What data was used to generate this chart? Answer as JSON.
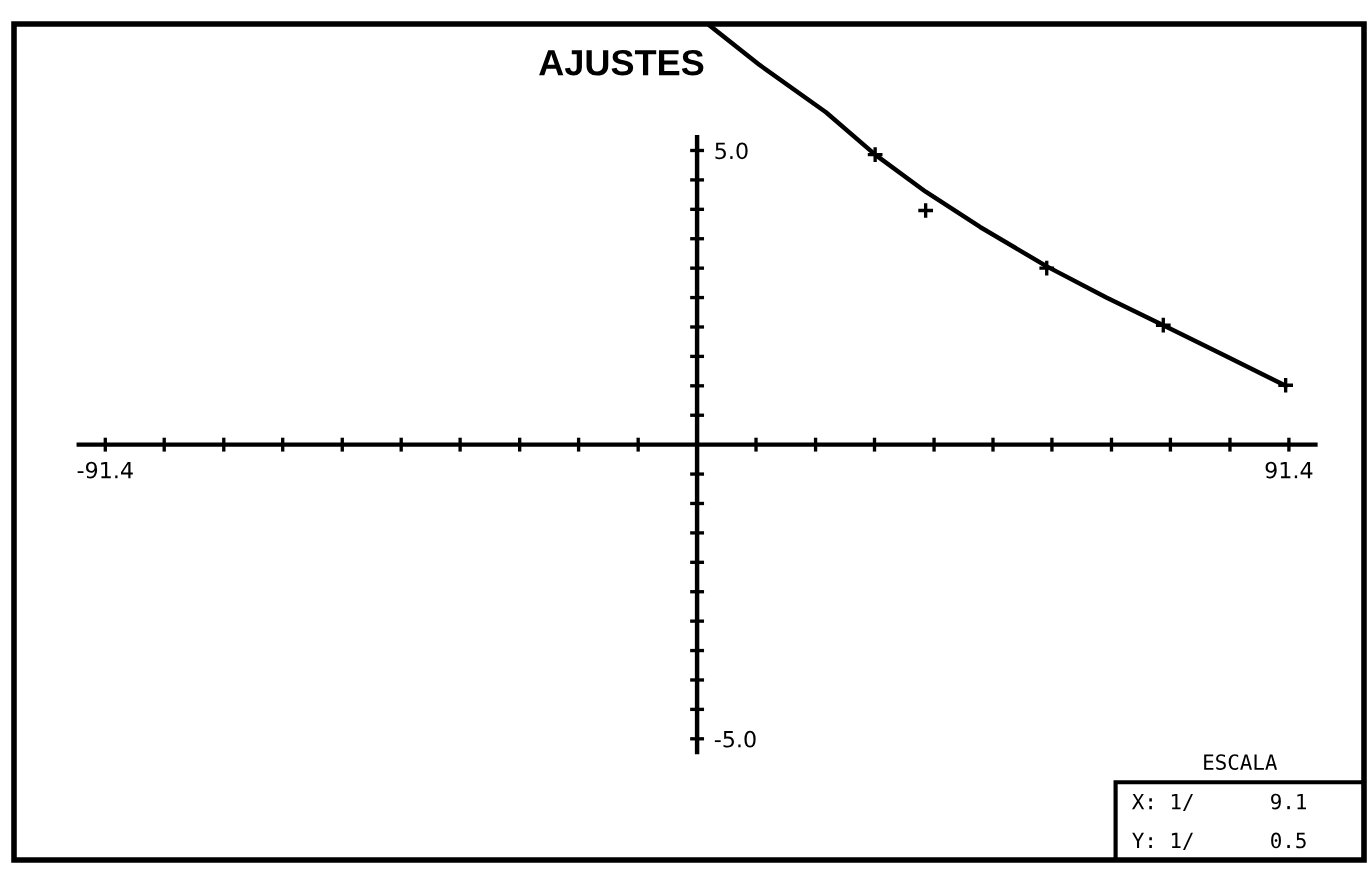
{
  "chart_data": {
    "type": "scatter",
    "title": "AJUSTES",
    "xlim": [
      -105.5,
      103.0
    ],
    "ylim": [
      -7.06,
      7.15
    ],
    "xticks": [
      {
        "value": -91.4,
        "label": "-91.4"
      },
      {
        "value": -82.3,
        "label": null
      },
      {
        "value": -73.1,
        "label": null
      },
      {
        "value": -64.0,
        "label": null
      },
      {
        "value": -54.8,
        "label": null
      },
      {
        "value": -45.7,
        "label": null
      },
      {
        "value": -36.6,
        "label": null
      },
      {
        "value": -27.4,
        "label": null
      },
      {
        "value": -18.3,
        "label": null
      },
      {
        "value": -9.1,
        "label": null
      },
      {
        "value": 9.1,
        "label": null
      },
      {
        "value": 18.3,
        "label": null
      },
      {
        "value": 27.4,
        "label": null
      },
      {
        "value": 36.6,
        "label": null
      },
      {
        "value": 45.7,
        "label": null
      },
      {
        "value": 54.8,
        "label": null
      },
      {
        "value": 64.0,
        "label": null
      },
      {
        "value": 73.1,
        "label": null
      },
      {
        "value": 82.3,
        "label": null
      },
      {
        "value": 91.4,
        "label": "91.4"
      }
    ],
    "yticks": [
      {
        "value": -5.0,
        "label": "-5.0"
      },
      {
        "value": -4.5,
        "label": null
      },
      {
        "value": -4.0,
        "label": null
      },
      {
        "value": -3.5,
        "label": null
      },
      {
        "value": -3.0,
        "label": null
      },
      {
        "value": -2.5,
        "label": null
      },
      {
        "value": -2.0,
        "label": null
      },
      {
        "value": -1.5,
        "label": null
      },
      {
        "value": -1.0,
        "label": null
      },
      {
        "value": -0.5,
        "label": null
      },
      {
        "value": 0.5,
        "label": null
      },
      {
        "value": 1.0,
        "label": null
      },
      {
        "value": 1.5,
        "label": null
      },
      {
        "value": 2.0,
        "label": null
      },
      {
        "value": 2.5,
        "label": null
      },
      {
        "value": 3.0,
        "label": null
      },
      {
        "value": 3.5,
        "label": null
      },
      {
        "value": 4.0,
        "label": null
      },
      {
        "value": 4.5,
        "label": null
      },
      {
        "value": 5.0,
        "label": "5.0"
      }
    ],
    "grid": false,
    "series": [
      {
        "color": "#000000",
        "marker": "cross",
        "x": [
          27.5,
          35.3,
          54.0,
          72.0,
          90.9
        ],
        "values": [
          4.93,
          3.98,
          3.0,
          2.03,
          1.01
        ]
      },
      {
        "type": "line",
        "color": "#000000",
        "marker": "none",
        "line_style": "solid",
        "x": [
          2.0,
          9.7,
          19.9,
          27.5,
          35.3,
          43.7,
          54.0,
          63.2,
          72.0,
          81.8,
          90.9
        ],
        "values": [
          7.12,
          6.45,
          5.65,
          4.93,
          4.3,
          3.7,
          3.03,
          2.5,
          2.03,
          1.5,
          1.0
        ]
      }
    ],
    "annotations": [
      "ESCALA",
      "X: 1/      9.1",
      "Y: 1/      0.5"
    ]
  }
}
